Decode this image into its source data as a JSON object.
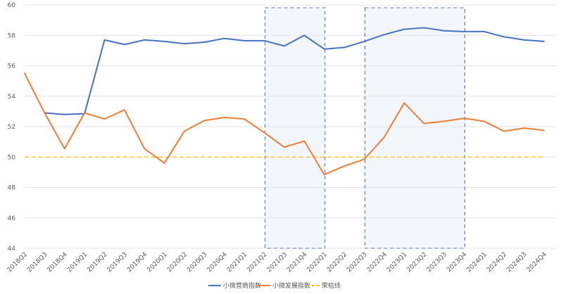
{
  "chart_data": {
    "type": "line",
    "title": "",
    "xlabel": "",
    "ylabel": "",
    "ylim": [
      44,
      60
    ],
    "yticks": [
      44,
      46,
      48,
      50,
      52,
      54,
      56,
      58,
      60
    ],
    "grid": true,
    "legend_position": "bottom",
    "categories": [
      "2018Q2",
      "2018Q3",
      "2018Q4",
      "2019Q1",
      "2019Q2",
      "2019Q3",
      "2019Q4",
      "2020Q1",
      "2020Q2",
      "2020Q3",
      "2020Q4",
      "2021Q1",
      "2021Q2",
      "2021Q3",
      "2021Q4",
      "2022Q1",
      "2022Q2",
      "2022Q3",
      "2022Q4",
      "2023Q1",
      "2023Q2",
      "2023Q3",
      "2023Q4",
      "2024Q1",
      "2024Q2",
      "2024Q3",
      "2024Q4"
    ],
    "series": [
      {
        "name": "小微营商指数",
        "color": "#4472c4",
        "values": [
          null,
          52.9,
          52.8,
          52.85,
          57.7,
          57.4,
          57.7,
          57.6,
          57.45,
          57.55,
          57.8,
          57.65,
          57.65,
          57.3,
          58.0,
          57.1,
          57.2,
          57.6,
          58.05,
          58.4,
          58.5,
          58.3,
          58.25,
          58.25,
          57.9,
          57.7,
          57.6
        ]
      },
      {
        "name": "小微发展指数",
        "color": "#ed7d31",
        "values": [
          55.5,
          52.9,
          50.55,
          52.9,
          52.5,
          53.1,
          50.55,
          49.6,
          51.7,
          52.4,
          52.6,
          52.5,
          51.6,
          50.65,
          51.05,
          48.85,
          49.4,
          49.85,
          51.3,
          53.55,
          52.2,
          52.35,
          52.55,
          52.35,
          51.7,
          51.9,
          51.75
        ]
      }
    ],
    "reference_line": {
      "name": "荣枯线",
      "value": 50,
      "color": "#ffc000"
    },
    "highlight_ranges": [
      {
        "start": "2021Q2",
        "end": "2022Q1"
      },
      {
        "start": "2022Q3",
        "end": "2023Q4"
      }
    ]
  }
}
